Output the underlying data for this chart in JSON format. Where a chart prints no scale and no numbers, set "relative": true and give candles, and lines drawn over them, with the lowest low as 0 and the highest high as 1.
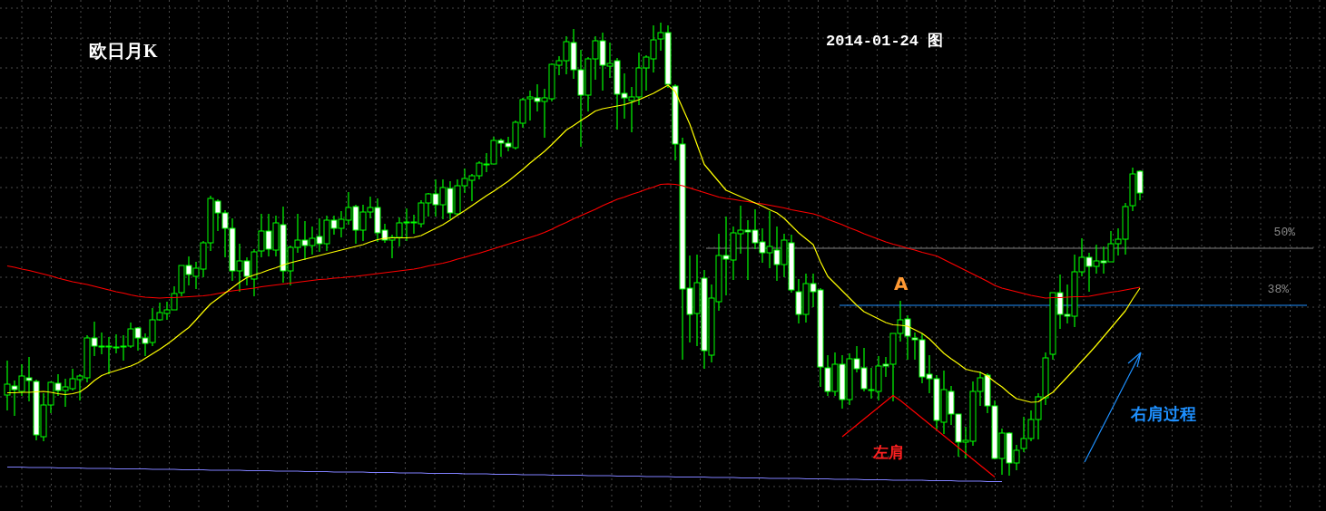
{
  "chart_data": {
    "type": "candlestick",
    "title": "欧日月K",
    "subtitle": "2014-01-24 图",
    "relative": true,
    "grid": true,
    "color": "#00ff00",
    "ref_lines": [
      {
        "axis": "y",
        "value": 0.502,
        "label": "50%",
        "color": "#808080"
      },
      {
        "axis": "y",
        "value": 0.376,
        "label": "38%",
        "color": "#1e90ff"
      }
    ],
    "annotations": [
      "A",
      "左肩",
      "右肩过程"
    ],
    "categories": [
      null,
      null,
      null,
      null,
      null,
      null,
      null,
      null,
      null,
      null,
      null,
      null,
      null,
      null,
      null,
      null,
      null,
      null,
      null,
      null,
      null,
      null,
      null,
      null,
      null,
      null,
      null,
      null,
      null,
      null,
      null,
      null,
      null,
      null,
      null,
      null,
      null,
      null,
      null,
      null,
      null,
      null,
      null,
      null,
      null,
      null,
      null,
      null,
      null,
      null,
      null,
      null,
      null,
      null,
      null,
      null,
      null,
      null,
      null,
      null,
      null,
      null,
      null,
      null,
      null,
      null,
      null,
      null,
      null,
      null,
      null,
      null,
      null,
      null,
      null,
      null,
      null,
      null,
      null,
      null,
      null,
      null,
      null,
      null,
      null,
      null,
      null,
      null,
      null,
      null,
      null,
      null,
      null,
      null,
      null,
      null,
      null,
      null,
      null,
      null,
      null,
      null,
      null,
      null,
      null,
      null,
      null,
      null,
      null,
      null,
      null,
      null,
      null,
      null,
      null,
      null,
      null,
      null,
      null,
      null,
      null,
      null,
      null,
      null,
      null,
      null,
      null,
      null,
      null,
      null,
      null,
      null,
      null,
      null,
      null,
      null,
      null,
      null,
      null,
      null,
      null,
      null,
      null,
      null,
      null,
      null,
      null,
      null,
      null,
      null,
      null,
      null,
      null,
      null,
      null,
      null,
      null
    ],
    "ohlc": [
      [
        0.178,
        0.254,
        0.144,
        0.202
      ],
      [
        0.198,
        0.21,
        0.132,
        0.19
      ],
      [
        0.186,
        0.246,
        0.176,
        0.22
      ],
      [
        0.216,
        0.262,
        0.164,
        0.21
      ],
      [
        0.208,
        0.212,
        0.078,
        0.09
      ],
      [
        0.086,
        0.182,
        0.076,
        0.156
      ],
      [
        0.156,
        0.208,
        0.138,
        0.206
      ],
      [
        0.204,
        0.224,
        0.176,
        0.188
      ],
      [
        0.188,
        0.214,
        0.152,
        0.196
      ],
      [
        0.192,
        0.236,
        0.188,
        0.214
      ],
      [
        0.212,
        0.224,
        0.166,
        0.22
      ],
      [
        0.216,
        0.31,
        0.206,
        0.304
      ],
      [
        0.304,
        0.34,
        0.264,
        0.286
      ],
      [
        0.286,
        0.316,
        0.268,
        0.286
      ],
      [
        0.286,
        0.306,
        0.224,
        0.286
      ],
      [
        0.284,
        0.312,
        0.27,
        0.284
      ],
      [
        0.286,
        0.31,
        0.254,
        0.286
      ],
      [
        0.286,
        0.338,
        0.282,
        0.324
      ],
      [
        0.326,
        0.328,
        0.276,
        0.304
      ],
      [
        0.304,
        0.314,
        0.264,
        0.292
      ],
      [
        0.294,
        0.37,
        0.286,
        0.344
      ],
      [
        0.344,
        0.382,
        0.342,
        0.36
      ],
      [
        0.358,
        0.384,
        0.344,
        0.366
      ],
      [
        0.366,
        0.418,
        0.366,
        0.402
      ],
      [
        0.404,
        0.464,
        0.396,
        0.464
      ],
      [
        0.464,
        0.484,
        0.42,
        0.444
      ],
      [
        0.44,
        0.472,
        0.412,
        0.458
      ],
      [
        0.456,
        0.518,
        0.438,
        0.514
      ],
      [
        0.514,
        0.618,
        0.496,
        0.612
      ],
      [
        0.606,
        0.61,
        0.54,
        0.58
      ],
      [
        0.58,
        0.586,
        0.482,
        0.546
      ],
      [
        0.546,
        0.568,
        0.43,
        0.452
      ],
      [
        0.452,
        0.512,
        0.406,
        0.474
      ],
      [
        0.474,
        0.482,
        0.42,
        0.44
      ],
      [
        0.434,
        0.5,
        0.396,
        0.494
      ],
      [
        0.496,
        0.578,
        0.482,
        0.54
      ],
      [
        0.54,
        0.578,
        0.484,
        0.5
      ],
      [
        0.498,
        0.574,
        0.484,
        0.558
      ],
      [
        0.554,
        0.594,
        0.426,
        0.452
      ],
      [
        0.452,
        0.508,
        0.42,
        0.504
      ],
      [
        0.504,
        0.578,
        0.492,
        0.52
      ],
      [
        0.52,
        0.562,
        0.476,
        0.508
      ],
      [
        0.508,
        0.55,
        0.488,
        0.524
      ],
      [
        0.528,
        0.568,
        0.494,
        0.512
      ],
      [
        0.512,
        0.574,
        0.496,
        0.564
      ],
      [
        0.564,
        0.574,
        0.532,
        0.546
      ],
      [
        0.546,
        0.584,
        0.526,
        0.566
      ],
      [
        0.564,
        0.626,
        0.554,
        0.592
      ],
      [
        0.594,
        0.598,
        0.512,
        0.542
      ],
      [
        0.542,
        0.598,
        0.518,
        0.582
      ],
      [
        0.582,
        0.616,
        0.568,
        0.592
      ],
      [
        0.592,
        0.612,
        0.516,
        0.536
      ],
      [
        0.542,
        0.556,
        0.514,
        0.52
      ],
      [
        0.52,
        0.532,
        0.48,
        0.526
      ],
      [
        0.526,
        0.57,
        0.506,
        0.558
      ],
      [
        0.56,
        0.59,
        0.518,
        0.56
      ],
      [
        0.56,
        0.576,
        0.534,
        0.56
      ],
      [
        0.556,
        0.608,
        0.548,
        0.602
      ],
      [
        0.602,
        0.624,
        0.572,
        0.622
      ],
      [
        0.622,
        0.654,
        0.572,
        0.598
      ],
      [
        0.598,
        0.654,
        0.566,
        0.636
      ],
      [
        0.634,
        0.65,
        0.566,
        0.58
      ],
      [
        0.578,
        0.654,
        0.574,
        0.64
      ],
      [
        0.64,
        0.678,
        0.624,
        0.656
      ],
      [
        0.652,
        0.666,
        0.606,
        0.662
      ],
      [
        0.662,
        0.694,
        0.654,
        0.69
      ],
      [
        0.688,
        0.712,
        0.67,
        0.688
      ],
      [
        0.688,
        0.748,
        0.688,
        0.74
      ],
      [
        0.74,
        0.744,
        0.704,
        0.734
      ],
      [
        0.734,
        0.748,
        0.716,
        0.726
      ],
      [
        0.724,
        0.784,
        0.72,
        0.78
      ],
      [
        0.778,
        0.834,
        0.768,
        0.83
      ],
      [
        0.832,
        0.85,
        0.784,
        0.836
      ],
      [
        0.834,
        0.864,
        0.804,
        0.826
      ],
      [
        0.826,
        0.854,
        0.746,
        0.834
      ],
      [
        0.832,
        0.91,
        0.826,
        0.908
      ],
      [
        0.906,
        0.926,
        0.884,
        0.916
      ],
      [
        0.916,
        0.97,
        0.886,
        0.958
      ],
      [
        0.956,
        0.986,
        0.876,
        0.896
      ],
      [
        0.896,
        0.94,
        0.726,
        0.84
      ],
      [
        0.84,
        0.924,
        0.804,
        0.92
      ],
      [
        0.92,
        0.97,
        0.874,
        0.96
      ],
      [
        0.96,
        0.978,
        0.85,
        0.906
      ],
      [
        0.904,
        0.956,
        0.878,
        0.91
      ],
      [
        0.916,
        0.922,
        0.764,
        0.842
      ],
      [
        0.844,
        0.888,
        0.788,
        0.834
      ],
      [
        0.828,
        0.858,
        0.758,
        0.836
      ],
      [
        0.836,
        0.934,
        0.818,
        0.9
      ],
      [
        0.9,
        0.928,
        0.85,
        0.924
      ],
      [
        0.92,
        0.994,
        0.89,
        0.962
      ],
      [
        0.964,
        1.0,
        0.938,
        0.978
      ],
      [
        0.978,
        0.994,
        0.856,
        0.864
      ],
      [
        0.86,
        0.864,
        0.696,
        0.732
      ],
      [
        0.732,
        0.746,
        0.256,
        0.412
      ],
      [
        0.414,
        0.486,
        0.294,
        0.356
      ],
      [
        0.358,
        0.488,
        0.286,
        0.426
      ],
      [
        0.436,
        0.454,
        0.236,
        0.276
      ],
      [
        0.266,
        0.422,
        0.25,
        0.392
      ],
      [
        0.384,
        0.534,
        0.364,
        0.486
      ],
      [
        0.486,
        0.572,
        0.398,
        0.478
      ],
      [
        0.476,
        0.55,
        0.432,
        0.536
      ],
      [
        0.534,
        0.596,
        0.49,
        0.542
      ],
      [
        0.542,
        0.564,
        0.432,
        0.538
      ],
      [
        0.542,
        0.588,
        0.5,
        0.514
      ],
      [
        0.516,
        0.546,
        0.47,
        0.492
      ],
      [
        0.492,
        0.584,
        0.458,
        0.506
      ],
      [
        0.498,
        0.55,
        0.43,
        0.466
      ],
      [
        0.466,
        0.534,
        0.438,
        0.52
      ],
      [
        0.514,
        0.532,
        0.404,
        0.41
      ],
      [
        0.406,
        0.434,
        0.336,
        0.356
      ],
      [
        0.356,
        0.446,
        0.338,
        0.424
      ],
      [
        0.424,
        0.446,
        0.372,
        0.406
      ],
      [
        0.41,
        0.414,
        0.196,
        0.24
      ],
      [
        0.238,
        0.266,
        0.176,
        0.186
      ],
      [
        0.186,
        0.272,
        0.176,
        0.246
      ],
      [
        0.246,
        0.266,
        0.148,
        0.168
      ],
      [
        0.168,
        0.27,
        0.156,
        0.258
      ],
      [
        0.258,
        0.286,
        0.228,
        0.236
      ],
      [
        0.238,
        0.282,
        0.186,
        0.192
      ],
      [
        0.19,
        0.238,
        0.17,
        0.19
      ],
      [
        0.186,
        0.264,
        0.166,
        0.242
      ],
      [
        0.246,
        0.262,
        0.218,
        0.242
      ],
      [
        0.246,
        0.314,
        0.164,
        0.314
      ],
      [
        0.314,
        0.386,
        0.296,
        0.344
      ],
      [
        0.346,
        0.354,
        0.256,
        0.308
      ],
      [
        0.304,
        0.316,
        0.256,
        0.3
      ],
      [
        0.3,
        0.314,
        0.204,
        0.218
      ],
      [
        0.224,
        0.266,
        0.182,
        0.214
      ],
      [
        0.214,
        0.222,
        0.102,
        0.122
      ],
      [
        0.118,
        0.232,
        0.092,
        0.19
      ],
      [
        0.186,
        0.198,
        0.112,
        0.136
      ],
      [
        0.136,
        0.136,
        0.042,
        0.074
      ],
      [
        0.074,
        0.108,
        0.038,
        0.078
      ],
      [
        0.076,
        0.208,
        0.066,
        0.186
      ],
      [
        0.186,
        0.23,
        0.154,
        0.216
      ],
      [
        0.222,
        0.226,
        0.138,
        0.154
      ],
      [
        0.154,
        0.166,
        0.036,
        0.038
      ],
      [
        0.038,
        0.104,
        0.002,
        0.094
      ],
      [
        0.094,
        0.096,
        0.0,
        0.028
      ],
      [
        0.028,
        0.068,
        0.012,
        0.056
      ],
      [
        0.06,
        0.13,
        0.052,
        0.082
      ],
      [
        0.082,
        0.144,
        0.076,
        0.124
      ],
      [
        0.124,
        0.182,
        0.08,
        0.174
      ],
      [
        0.172,
        0.272,
        0.156,
        0.26
      ],
      [
        0.268,
        0.404,
        0.256,
        0.404
      ],
      [
        0.404,
        0.444,
        0.324,
        0.356
      ],
      [
        0.356,
        0.422,
        0.336,
        0.352
      ],
      [
        0.352,
        0.488,
        0.328,
        0.45
      ],
      [
        0.45,
        0.524,
        0.44,
        0.482
      ],
      [
        0.482,
        0.492,
        0.406,
        0.462
      ],
      [
        0.462,
        0.51,
        0.446,
        0.474
      ],
      [
        0.474,
        0.506,
        0.446,
        0.47
      ],
      [
        0.472,
        0.54,
        0.472,
        0.512
      ],
      [
        0.512,
        0.546,
        0.486,
        0.522
      ],
      [
        0.522,
        0.602,
        0.488,
        0.594
      ],
      [
        0.596,
        0.68,
        0.584,
        0.666
      ],
      [
        0.672,
        0.674,
        0.608,
        0.624
      ]
    ],
    "series": [
      {
        "type": "line",
        "color": "#ff0000",
        "values": [
          0.463,
          0.46,
          0.456,
          0.453,
          0.449,
          0.445,
          0.441,
          0.436,
          0.432,
          0.428,
          0.425,
          0.422,
          0.418,
          0.414,
          0.41,
          0.406,
          0.403,
          0.399,
          0.396,
          0.394,
          0.393,
          0.392,
          0.393,
          0.393,
          0.394,
          0.395,
          0.396,
          0.397,
          0.399,
          0.402,
          0.405,
          0.408,
          0.41,
          0.412,
          0.414,
          0.417,
          0.419,
          0.421,
          0.423,
          0.425,
          0.427,
          0.429,
          0.431,
          0.433,
          0.434,
          0.436,
          0.437,
          0.439,
          0.44,
          0.442,
          0.444,
          0.446,
          0.448,
          0.45,
          0.452,
          0.454,
          0.456,
          0.459,
          0.463,
          0.466,
          0.469,
          0.473,
          0.478,
          0.482,
          0.487,
          0.491,
          0.496,
          0.501,
          0.506,
          0.511,
          0.516,
          0.521,
          0.526,
          0.531,
          0.537,
          0.544,
          0.552,
          0.559,
          0.567,
          0.574,
          0.581,
          0.588,
          0.596,
          0.603,
          0.61,
          0.615,
          0.621,
          0.626,
          0.632,
          0.637,
          0.643,
          0.644,
          0.643,
          0.64,
          0.635,
          0.63,
          0.625,
          0.62,
          0.615,
          0.612,
          0.61,
          0.607,
          0.605,
          0.602,
          0.6,
          0.597,
          0.594,
          0.591,
          0.587,
          0.584,
          0.581,
          0.578,
          0.573,
          0.566,
          0.56,
          0.554,
          0.547,
          0.541,
          0.534,
          0.528,
          0.522,
          0.516,
          0.511,
          0.507,
          0.502,
          0.498,
          0.493,
          0.489,
          0.485,
          0.477,
          0.469,
          0.461,
          0.453,
          0.445,
          0.437,
          0.429,
          0.42,
          0.414,
          0.41,
          0.406,
          0.402,
          0.398,
          0.395,
          0.392,
          0.393,
          0.393,
          0.394,
          0.395,
          0.395,
          0.396,
          0.399,
          0.402,
          0.405,
          0.407,
          0.41,
          0.413,
          0.416
        ]
      },
      {
        "type": "line",
        "color": "#ffff00",
        "values": [
          0.183,
          0.183,
          0.184,
          0.184,
          0.185,
          0.186,
          0.184,
          0.181,
          0.179,
          0.181,
          0.185,
          0.196,
          0.21,
          0.221,
          0.227,
          0.232,
          0.237,
          0.242,
          0.249,
          0.259,
          0.269,
          0.279,
          0.29,
          0.302,
          0.315,
          0.327,
          0.344,
          0.362,
          0.379,
          0.391,
          0.403,
          0.415,
          0.427,
          0.437,
          0.443,
          0.448,
          0.454,
          0.459,
          0.465,
          0.47,
          0.474,
          0.478,
          0.482,
          0.486,
          0.49,
          0.494,
          0.498,
          0.502,
          0.506,
          0.51,
          0.516,
          0.521,
          0.524,
          0.525,
          0.525,
          0.525,
          0.526,
          0.53,
          0.538,
          0.546,
          0.554,
          0.564,
          0.575,
          0.585,
          0.596,
          0.607,
          0.618,
          0.628,
          0.639,
          0.65,
          0.663,
          0.676,
          0.69,
          0.703,
          0.716,
          0.731,
          0.747,
          0.763,
          0.773,
          0.784,
          0.794,
          0.805,
          0.81,
          0.813,
          0.816,
          0.819,
          0.824,
          0.83,
          0.837,
          0.844,
          0.853,
          0.862,
          0.848,
          0.812,
          0.776,
          0.731,
          0.687,
          0.668,
          0.649,
          0.63,
          0.623,
          0.616,
          0.609,
          0.602,
          0.595,
          0.587,
          0.58,
          0.568,
          0.552,
          0.536,
          0.523,
          0.51,
          0.472,
          0.44,
          0.424,
          0.408,
          0.392,
          0.376,
          0.362,
          0.354,
          0.346,
          0.338,
          0.333,
          0.332,
          0.33,
          0.322,
          0.314,
          0.302,
          0.286,
          0.27,
          0.258,
          0.247,
          0.235,
          0.231,
          0.228,
          0.22,
          0.207,
          0.196,
          0.182,
          0.17,
          0.166,
          0.162,
          0.163,
          0.174,
          0.184,
          0.201,
          0.218,
          0.235,
          0.253,
          0.27,
          0.288,
          0.307,
          0.326,
          0.345,
          0.364,
          0.39,
          0.414
        ]
      },
      {
        "type": "line",
        "color": "#8080ff",
        "values": [
          0.019,
          0.019,
          0.019,
          0.018,
          0.018,
          0.018,
          0.018,
          0.017,
          0.017,
          0.017,
          0.017,
          0.016,
          0.016,
          0.016,
          0.016,
          0.015,
          0.015,
          0.015,
          0.015,
          0.015,
          0.014,
          0.014,
          0.014,
          0.014,
          0.013,
          0.013,
          0.013,
          0.013,
          0.012,
          0.012,
          0.012,
          0.012,
          0.012,
          0.011,
          0.011,
          0.011,
          0.011,
          0.01,
          0.01,
          0.01,
          0.01,
          0.009,
          0.009,
          0.009,
          0.009,
          0.008,
          0.008,
          0.008,
          0.008,
          0.008,
          0.007,
          0.007,
          0.007,
          0.007,
          0.006,
          0.006,
          0.006,
          0.006,
          0.005,
          0.005,
          0.005,
          0.005,
          0.005,
          0.004,
          0.004,
          0.004,
          0.004,
          0.003,
          0.003,
          0.003,
          0.003,
          0.002,
          0.002,
          0.002,
          0.002,
          0.001,
          0.001,
          0.001,
          0.001,
          0.001,
          0,
          0,
          0,
          0,
          -0.001,
          -0.001,
          -0.001,
          -0.001,
          -0.002,
          -0.002,
          -0.002,
          -0.002,
          -0.003,
          -0.003,
          -0.003,
          -0.003,
          -0.003,
          -0.004,
          -0.004,
          -0.004,
          -0.004,
          -0.005,
          -0.005,
          -0.005,
          -0.005,
          -0.006,
          -0.006,
          -0.006,
          -0.006,
          -0.006,
          -0.007,
          -0.007,
          -0.007,
          -0.007,
          -0.008,
          -0.008,
          -0.008,
          -0.008,
          -0.009,
          -0.009,
          -0.009,
          -0.009,
          -0.01,
          -0.01,
          -0.01,
          -0.01,
          -0.01,
          -0.011,
          -0.011,
          -0.011,
          -0.011,
          -0.012,
          -0.012,
          -0.012,
          -0.012,
          -0.013,
          -0.013,
          -0.013,
          null,
          null,
          null,
          null,
          null,
          null,
          null,
          null,
          null,
          null,
          null,
          null,
          null,
          null,
          null,
          null,
          null,
          null,
          null
        ]
      },
      {
        "type": "line",
        "color": "#ff0000",
        "values": [
          null,
          null,
          null,
          null,
          null,
          null,
          null,
          null,
          null,
          null,
          null,
          null,
          null,
          null,
          null,
          null,
          null,
          null,
          null,
          null,
          null,
          null,
          null,
          null,
          null,
          null,
          null,
          null,
          null,
          null,
          null,
          null,
          null,
          null,
          null,
          null,
          null,
          null,
          null,
          null,
          null,
          null,
          null,
          null,
          null,
          null,
          null,
          null,
          null,
          null,
          null,
          null,
          null,
          null,
          null,
          null,
          null,
          null,
          null,
          null,
          null,
          null,
          null,
          null,
          null,
          null,
          null,
          null,
          null,
          null,
          null,
          null,
          null,
          null,
          null,
          null,
          null,
          null,
          null,
          null,
          null,
          null,
          null,
          null,
          null,
          null,
          null,
          null,
          null,
          null,
          null,
          null,
          null,
          null,
          null,
          null,
          null,
          null,
          null,
          null,
          null,
          null,
          null,
          null,
          null,
          null,
          null,
          null,
          null,
          null,
          null,
          null,
          null,
          null,
          null,
          0.086,
          0.099,
          0.112,
          0.125,
          0.138,
          0.151,
          0.164,
          0.177,
          0.166,
          0.153,
          0.14,
          0.127,
          0.114,
          0.101,
          0.088,
          0.075,
          0.062,
          0.049,
          0.036,
          0.023,
          0.01,
          -0.003,
          null,
          null,
          null,
          null,
          null,
          null,
          null,
          null,
          null,
          null,
          null,
          null,
          null,
          null,
          null,
          null,
          null,
          null,
          null,
          null
        ]
      }
    ]
  }
}
